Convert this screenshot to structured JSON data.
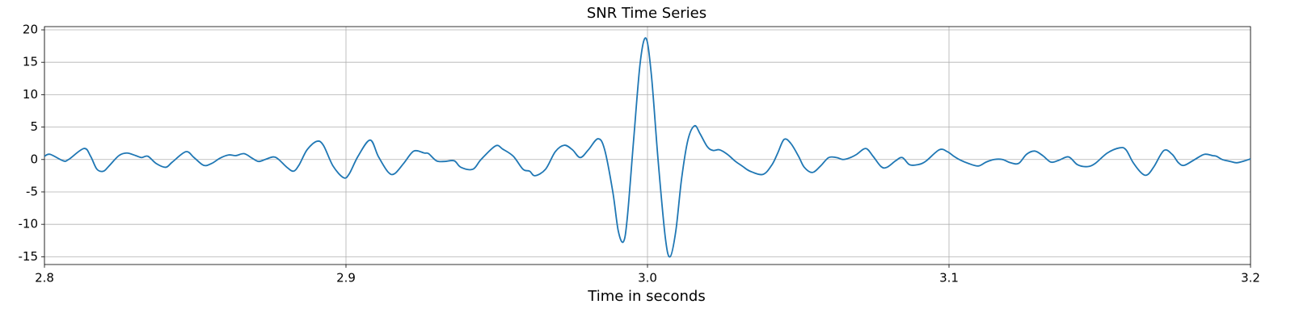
{
  "chart_data": {
    "type": "line",
    "title": "SNR Time Series",
    "x_label": "Time in seconds",
    "xlim": [
      2.8,
      3.2
    ],
    "ylim": [
      -16.2,
      20.5
    ],
    "xticks": [
      2.8,
      2.9,
      {
        "value": 3,
        "label": "3.0"
      },
      3.1,
      3.2
    ],
    "yticks": [
      -15,
      -10,
      -5,
      0,
      5,
      10,
      15,
      20
    ],
    "grid": true,
    "series": [
      {
        "color": "#1f77b4",
        "x": [
          2.8,
          2.8019,
          2.8062,
          2.808,
          2.8131,
          2.8153,
          2.8174,
          2.8196,
          2.8214,
          2.8247,
          2.8273,
          2.8303,
          2.8322,
          2.8343,
          2.837,
          2.8402,
          2.8424,
          2.8469,
          2.8496,
          2.8528,
          2.8555,
          2.8582,
          2.8611,
          2.8635,
          2.8662,
          2.8689,
          2.871,
          2.8732,
          2.8759,
          2.8777,
          2.8804,
          2.8826,
          2.8845,
          2.8871,
          2.8903,
          2.8925,
          2.8957,
          2.8992,
          2.9011,
          2.904,
          2.908,
          2.9107,
          2.9139,
          2.9161,
          2.9193,
          2.9225,
          2.926,
          2.9274,
          2.93,
          2.9327,
          2.9359,
          2.9381,
          2.9421,
          2.9448,
          2.9496,
          2.952,
          2.9555,
          2.9587,
          2.9609,
          2.9627,
          2.9662,
          2.9694,
          2.9724,
          2.9751,
          2.9777,
          2.9804,
          2.9836,
          2.9858,
          2.9885,
          2.9903,
          2.992,
          2.9933,
          2.9954,
          2.9976,
          2.9995,
          3.0013,
          3.0035,
          3.0059,
          3.0075,
          3.0094,
          3.0113,
          3.0134,
          3.0156,
          3.0174,
          3.0198,
          3.0217,
          3.0239,
          3.0265,
          3.0292,
          3.0314,
          3.034,
          3.0383,
          3.0413,
          3.0432,
          3.0453,
          3.0475,
          3.0501,
          3.052,
          3.0547,
          3.0574,
          3.0601,
          3.0627,
          3.0649,
          3.0673,
          3.0694,
          3.0724,
          3.0748,
          3.0775,
          3.0794,
          3.0823,
          3.0845,
          3.0869,
          3.0896,
          3.0922,
          3.0968,
          3.0995,
          3.1016,
          3.1038,
          3.1064,
          3.1097,
          3.1123,
          3.115,
          3.1177,
          3.1204,
          3.1231,
          3.1257,
          3.1284,
          3.1311,
          3.1338,
          3.1365,
          3.1397,
          3.1426,
          3.1459,
          3.1485,
          3.1525,
          3.1566,
          3.1587,
          3.1611,
          3.1641,
          3.166,
          3.1681,
          3.1713,
          3.174,
          3.1761,
          3.178,
          3.1815,
          3.1847,
          3.1874,
          3.1887,
          3.1906,
          3.1933,
          3.1954,
          3.1981,
          3.2
        ],
        "values": [
          0.5,
          0.8,
          -0.2,
          0,
          1.7,
          0.5,
          -1.5,
          -1.8,
          -1,
          0.6,
          1,
          0.6,
          0.3,
          0.5,
          -0.6,
          -1.2,
          -0.4,
          1.2,
          0.3,
          -0.9,
          -0.6,
          0.2,
          0.7,
          0.6,
          0.9,
          0.2,
          -0.3,
          0,
          0.4,
          0,
          -1.2,
          -1.8,
          -0.8,
          1.5,
          2.8,
          2.2,
          -1,
          -2.8,
          -2.2,
          0.5,
          3,
          0.5,
          -1.9,
          -2.2,
          -0.5,
          1.3,
          1,
          0.9,
          -0.2,
          -0.3,
          -0.2,
          -1.2,
          -1.5,
          0,
          2.1,
          1.6,
          0.5,
          -1.5,
          -1.8,
          -2.5,
          -1.5,
          1.2,
          2.2,
          1.5,
          0.3,
          1.5,
          3.2,
          1.5,
          -5,
          -11,
          -12.7,
          -9,
          3,
          15,
          18.7,
          13,
          0,
          -12,
          -15,
          -11,
          -3,
          3,
          5.2,
          4,
          2,
          1.4,
          1.5,
          0.8,
          -0.3,
          -1,
          -1.8,
          -2.3,
          -0.8,
          1,
          3.1,
          2.5,
          0.5,
          -1.2,
          -2,
          -1,
          0.3,
          0.3,
          0,
          0.3,
          0.8,
          1.7,
          0.5,
          -1.1,
          -1.2,
          -0.2,
          0.3,
          -0.8,
          -0.8,
          -0.3,
          1.5,
          1.2,
          0.5,
          -0.1,
          -0.6,
          -1,
          -0.4,
          0,
          0,
          -0.5,
          -0.6,
          0.8,
          1.3,
          0.6,
          -0.4,
          -0.1,
          0.4,
          -0.8,
          -1.1,
          -0.6,
          1,
          1.8,
          1.5,
          -0.5,
          -2.2,
          -2.3,
          -1,
          1.4,
          0.8,
          -0.5,
          -0.9,
          0,
          0.8,
          0.6,
          0.5,
          0,
          -0.3,
          -0.5,
          -0.2,
          0.1
        ]
      }
    ]
  }
}
